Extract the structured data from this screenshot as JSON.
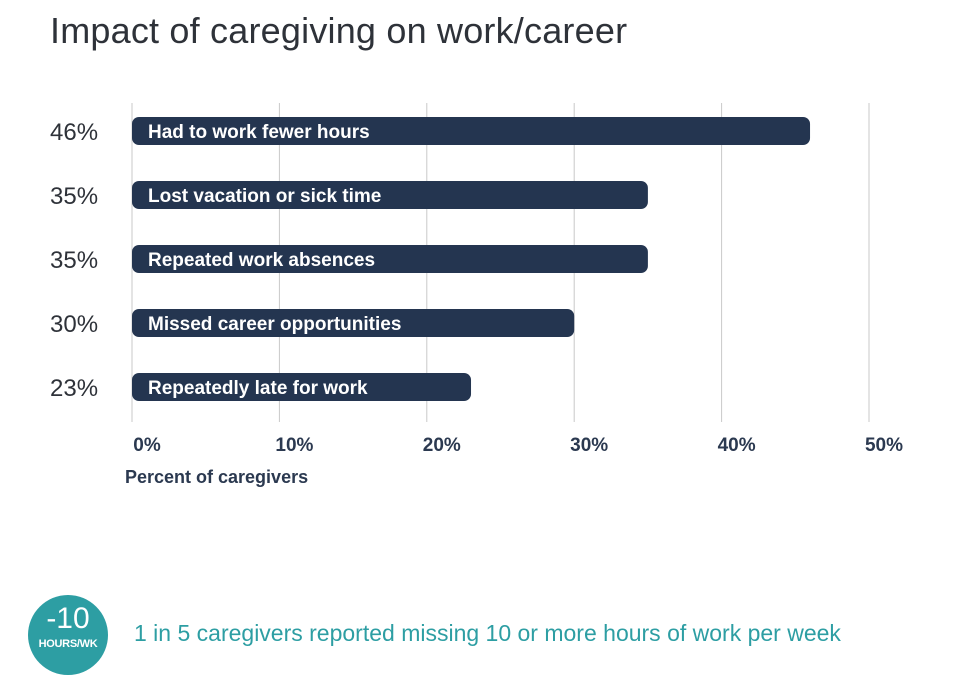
{
  "title": "Impact of caregiving on work/career",
  "chart_data": {
    "type": "bar",
    "orientation": "horizontal",
    "categories": [
      "Had to work fewer hours",
      "Lost vacation or sick time",
      "Repeated work absences",
      "Missed career opportunities",
      "Repeatedly late for work"
    ],
    "values": [
      46,
      35,
      35,
      30,
      23
    ],
    "value_labels": [
      "46%",
      "35%",
      "35%",
      "30%",
      "23%"
    ],
    "xlabel": "Percent of caregivers",
    "ylabel": "",
    "xlim": [
      0,
      50
    ],
    "ticks": [
      0,
      10,
      20,
      30,
      40,
      50
    ],
    "tick_labels": [
      "0%",
      "10%",
      "20%",
      "30%",
      "40%",
      "50%"
    ],
    "grid": "vertical",
    "legend": "none",
    "bar_color": "#243550",
    "grid_color": "#c9c9c9",
    "label_color": "#ffffff"
  },
  "footer": {
    "badge_number": "-10",
    "badge_unit": "HOURS/WK",
    "badge_color": "#2d9ea3",
    "text": "1 in 5 caregivers reported missing 10 or more hours of work per week"
  }
}
